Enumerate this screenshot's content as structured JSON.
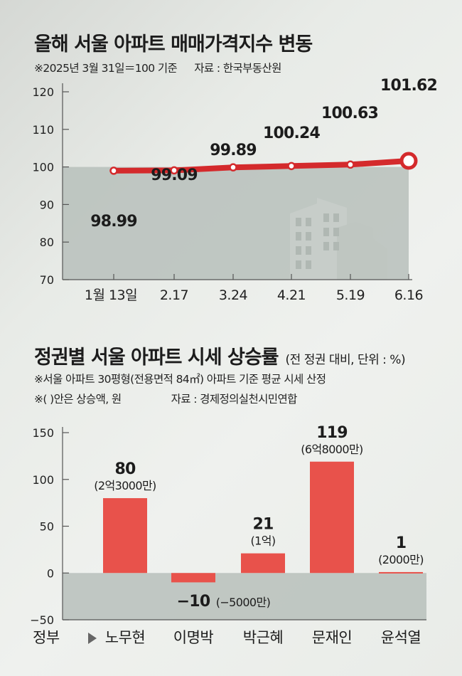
{
  "chart1": {
    "title": "올해 서울 아파트 매매가격지수 변동",
    "note": "※2025년 3월 31일＝100 기준",
    "source": "자료 : 한국부동산원"
  },
  "chart2": {
    "title": "정권별 서울 아파트 시세 상승률",
    "title_unit": "(전 정권 대비, 단위 : %)",
    "note1": "※서울 아파트 30평형(전용면적 84㎡) 아파트 기준 평균 시세 산정",
    "note2": "※(  )안은 상승액, 원",
    "source": "자료 : 경제정의실천시민연합",
    "axis_prefix": "정부"
  },
  "colors": {
    "line": "#d42a2c",
    "bar": "#e8524b",
    "band": "#b7c0bb",
    "buildings": "#c7cdc9"
  },
  "chart_data": [
    {
      "type": "line",
      "title": "올해 서울 아파트 매매가격지수 변동",
      "x": [
        "1월 13일",
        "2.17",
        "3.24",
        "4.21",
        "5.19",
        "6.16"
      ],
      "series": [
        {
          "values": [
            98.99,
            99.09,
            99.89,
            100.24,
            100.63,
            101.62
          ]
        }
      ],
      "data_labels": [
        "98.99",
        "99.09",
        "99.89",
        "100.24",
        "100.63",
        "101.62"
      ],
      "yticks": [
        120,
        110,
        100,
        90,
        80,
        70
      ],
      "grid": false,
      "band_below": 100
    },
    {
      "type": "bar",
      "title": "정권별 서울 아파트 시세 상승률",
      "categories": [
        "노무현",
        "이명박",
        "박근혜",
        "문재인",
        "윤석열"
      ],
      "values": [
        80,
        -10,
        21,
        119,
        1
      ],
      "value_labels": [
        "80",
        "−10",
        "21",
        "119",
        "1"
      ],
      "amount_labels": [
        "(2억3000만)",
        "(−5000만)",
        "(1억)",
        "(6억8000만)",
        "(2000만)"
      ],
      "yticks": [
        150,
        100,
        50,
        0,
        -50
      ],
      "ylim": [
        -50,
        150
      ],
      "grid": false
    }
  ]
}
